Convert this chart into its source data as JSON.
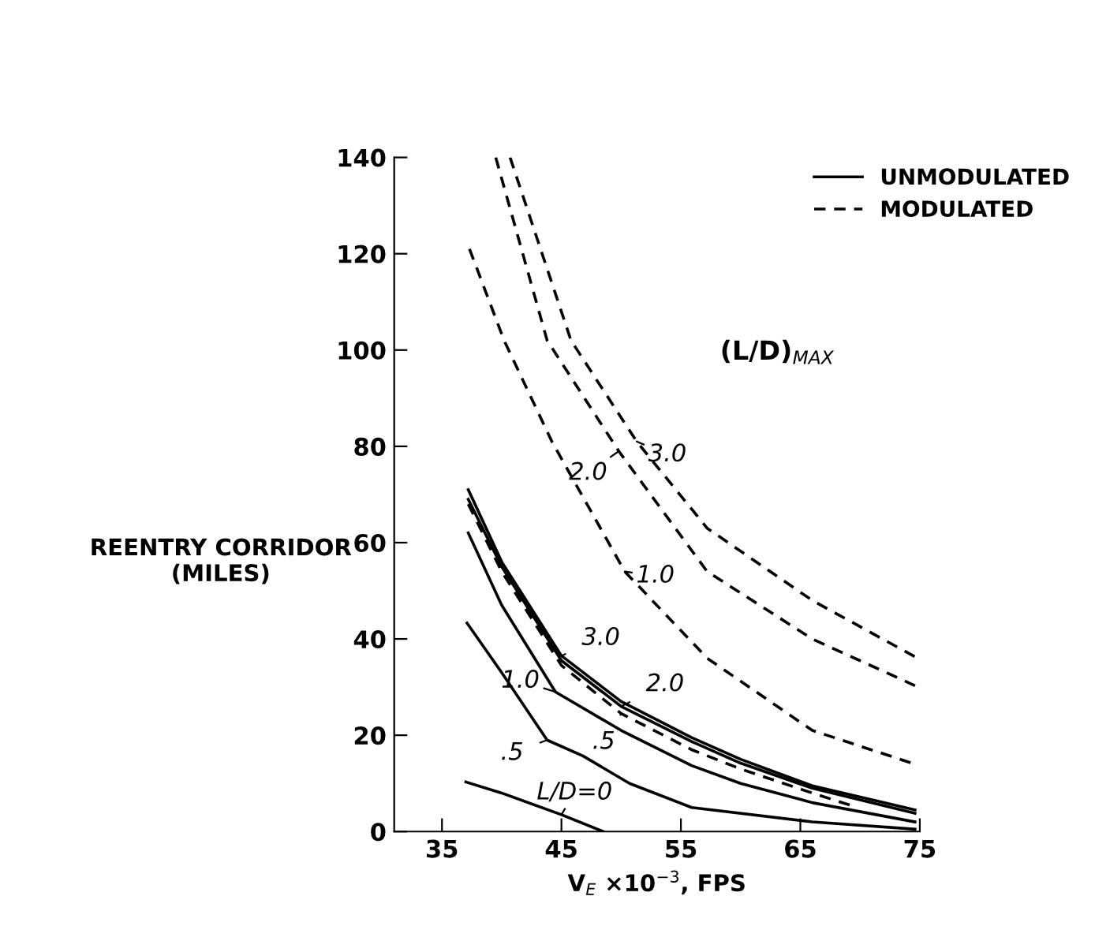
{
  "chart_data": {
    "type": "line",
    "xlabel": "V$_{E}$ ×10$^{−3}$, FPS",
    "ylabel": "REENTRY CORRIDOR\n(MILES)",
    "xlim": [
      31,
      75
    ],
    "xticks": [
      35,
      45,
      55,
      65,
      75
    ],
    "ylim": [
      0,
      140
    ],
    "yticks": [
      0,
      20,
      40,
      60,
      80,
      100,
      120,
      140
    ],
    "grid": false,
    "legend": "top right",
    "marker": "none",
    "series": [
      {
        "name": "UNMODULATED",
        "color": "#000000",
        "line_style": "solid",
        "x": [
          37,
          40,
          45,
          48.5
        ],
        "values": [
          10.3,
          8,
          3.5,
          0
        ]
      },
      {
        "color": "#000000",
        "line_style": "solid",
        "x": [
          37.1,
          40,
          43.8,
          46.8,
          50.7,
          55.9,
          66,
          74.6
        ],
        "values": [
          43.3,
          33,
          19,
          15.7,
          10,
          5,
          2,
          0.5
        ]
      },
      {
        "color": "#000000",
        "line_style": "solid",
        "x": [
          37.2,
          40,
          44.5,
          50,
          55.9,
          60,
          66,
          74.6
        ],
        "values": [
          62,
          47,
          29,
          21,
          13.7,
          10,
          6,
          2
        ]
      },
      {
        "color": "#000000",
        "line_style": "solid",
        "x": [
          37.2,
          40,
          45,
          50,
          55.9,
          60,
          66,
          74.6
        ],
        "values": [
          69,
          55,
          35.5,
          26,
          18.7,
          14.2,
          9,
          3.8
        ]
      },
      {
        "color": "#000000",
        "line_style": "solid",
        "x": [
          37.2,
          40,
          45,
          50,
          55.9,
          60,
          66,
          74.6
        ],
        "values": [
          71,
          56,
          36.5,
          27,
          19.5,
          15,
          9.5,
          4.5
        ]
      },
      {
        "name": "MODULATED",
        "color": "#000000",
        "line_style": "dashed",
        "x": [
          37.2,
          40,
          45,
          50,
          55.9,
          60,
          66,
          69.4
        ],
        "values": [
          68,
          54,
          34.5,
          24.5,
          17,
          13,
          8,
          5.3
        ]
      },
      {
        "color": "#000000",
        "line_style": "dashed",
        "x": [
          37.3,
          40.2,
          44.2,
          50.3,
          57.2,
          66,
          74.6
        ],
        "values": [
          121,
          102,
          81,
          54,
          36,
          21,
          14
        ]
      },
      {
        "color": "#000000",
        "line_style": "dashed",
        "x": [
          39.5,
          43.8,
          49.8,
          57.2,
          66,
          74.6
        ],
        "values": [
          140,
          102,
          79,
          54,
          40,
          30.3
        ]
      },
      {
        "color": "#000000",
        "line_style": "dashed",
        "x": [
          40.7,
          45.8,
          51.3,
          57.2,
          66,
          74.6
        ],
        "values": [
          140,
          102,
          81,
          63,
          48,
          36.3
        ]
      }
    ],
    "annotations": [
      "(L/D)$_{MAX}$",
      {
        "text": "3.0",
        "x": 51.3,
        "y": 81
      },
      {
        "text": "2.0",
        "x": 49.8,
        "y": 79
      },
      {
        "text": "1.0",
        "x": 50.3,
        "y": 54
      },
      {
        "text": "3.0",
        "x": 45,
        "y": 36.5
      },
      {
        "text": "2.0",
        "x": 50,
        "y": 26
      },
      {
        "text": "1.0",
        "x": 44.5,
        "y": 29
      },
      {
        "text": ".5",
        "x": 43.8,
        "y": 19
      },
      {
        "text": ".5",
        "x": 50,
        "y": 24.5
      },
      {
        "text": "L/D=0",
        "x": 45,
        "y": 3.5
      }
    ]
  }
}
